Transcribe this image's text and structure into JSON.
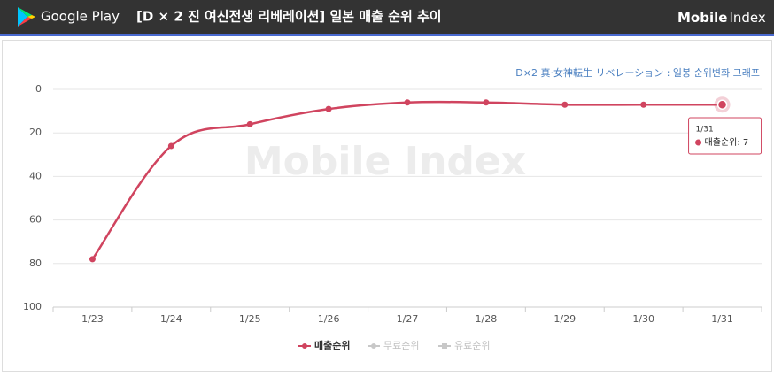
{
  "header": {
    "store": "Google Play",
    "title": "[D × 2 진 여신전생 리베레이션] 일본 매출 순위 추이",
    "brand_bold": "Mobile",
    "brand": "Index"
  },
  "chart_data": {
    "type": "line",
    "subtitle": "D×2 真·女神転生 リベレーション : 일봉 순위변화 그래프",
    "watermark": "Mobile Index",
    "categories": [
      "1/23",
      "1/24",
      "1/25",
      "1/26",
      "1/27",
      "1/28",
      "1/29",
      "1/30",
      "1/31"
    ],
    "series": [
      {
        "name": "매출순위",
        "color": "#d0445f",
        "values": [
          78,
          26,
          16,
          9,
          6,
          6,
          7,
          7,
          7
        ]
      },
      {
        "name": "무료순위",
        "color": "#c8c8c8",
        "values": [
          null,
          null,
          null,
          null,
          null,
          null,
          null,
          null,
          null
        ]
      },
      {
        "name": "유료순위",
        "color": "#c8c8c8",
        "values": [
          null,
          null,
          null,
          null,
          null,
          null,
          null,
          null,
          null
        ]
      }
    ],
    "ylim": [
      0,
      100
    ],
    "yticks": [
      0,
      20,
      40,
      60,
      80,
      100
    ],
    "y_reversed": true,
    "grid": true,
    "tooltip": {
      "x": "1/31",
      "label": "매출순위: 7"
    }
  }
}
